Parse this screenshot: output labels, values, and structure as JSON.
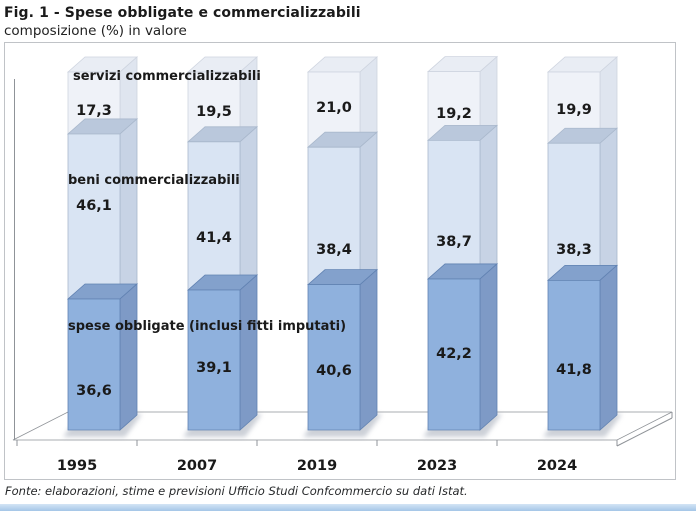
{
  "header": {
    "title": "Fig. 1 - Spese obbligate e commercializzabili",
    "subtitle": "composizione (%) in valore"
  },
  "footer": {
    "source": "Fonte: elaborazioni, stime e previsioni Ufficio Studi Confcommercio su dati Istat."
  },
  "chart_data": {
    "type": "bar",
    "subtype": "3d-stacked-column",
    "title": "Fig. 1 - Spese obbligate e commercializzabili",
    "subtitle": "composizione (%) in valore",
    "categories": [
      "1995",
      "2007",
      "2019",
      "2023",
      "2024"
    ],
    "series": [
      {
        "name": "spese obbligate (inclusi fitti imputati)",
        "values": [
          36.6,
          39.1,
          40.6,
          42.2,
          41.8
        ],
        "labels": [
          "36,6",
          "39,1",
          "40,6",
          "42,2",
          "41,8"
        ],
        "color": {
          "front": "#8fb1dd",
          "top": "#83a1cc",
          "side": "#7e9ac6",
          "edge": "#6182b2"
        }
      },
      {
        "name": "beni commercializzabili",
        "values": [
          46.1,
          41.4,
          38.4,
          38.7,
          38.3
        ],
        "labels": [
          "46,1",
          "41,4",
          "38,4",
          "38,7",
          "38,3"
        ],
        "color": {
          "front": "#d9e4f3",
          "top": "#bac8dc",
          "side": "#c7d3e5",
          "edge": "#a9b8cc"
        }
      },
      {
        "name": "servizi commercializzabili",
        "values": [
          17.3,
          19.5,
          21.0,
          19.2,
          19.9
        ],
        "labels": [
          "17,3",
          "19,5",
          "21,0",
          "19,2",
          "19,9"
        ],
        "color": {
          "front": "#eff2f8",
          "top": "#e9edf4",
          "side": "#dfe5ef",
          "edge": "#ced4df"
        }
      }
    ],
    "stack_total": 100,
    "ylim": [
      0,
      100
    ],
    "value_format": "comma-decimal",
    "grid": false,
    "legend_position": "labels-on-chart",
    "colors": {
      "axis": "#8f9398",
      "plot_border": "#c0c3c7",
      "text": "#1a1a1a",
      "shadow": "#9aa2b0",
      "bottom_strip": "#a4c6e7"
    }
  }
}
